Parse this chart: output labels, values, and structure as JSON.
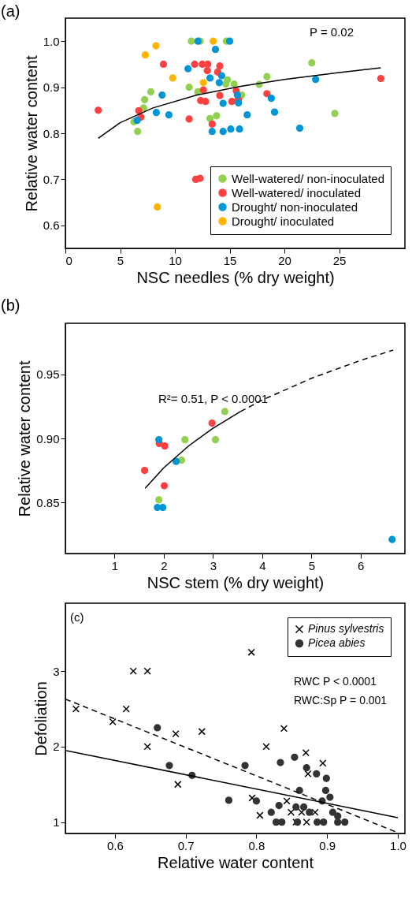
{
  "chart_data": [
    {
      "type": "scatter",
      "title": "(a)",
      "xlabel": "NSC needles (% dry weight)",
      "ylabel": "Relative water content",
      "xlim": [
        0,
        31
      ],
      "ylim": [
        0.55,
        1.05
      ],
      "xticks": [
        0,
        5,
        10,
        15,
        20,
        25
      ],
      "yticks": [
        0.6,
        0.7,
        0.8,
        0.9,
        {
          "value": 1,
          "label": "1.0"
        }
      ],
      "grid": false,
      "legend": "bottom right",
      "marker": "circle",
      "annotations": [
        "P = 0.02"
      ],
      "series": [
        {
          "name": "Well-watered/ non-inoculated",
          "color": "#92d050",
          "x": [
            11.5,
            12.3,
            14.7,
            14.8,
            14.65,
            15.4,
            11.3,
            12.1,
            7.8,
            7.24,
            7.14,
            6.26,
            6.6,
            13.2,
            13.8,
            16.1,
            22.5,
            18.4,
            17.7,
            24.6
          ],
          "values": [
            1.0,
            1.0,
            1.0,
            0.916,
            0.907,
            0.907,
            0.9,
            0.89,
            0.89,
            0.873,
            0.855,
            0.825,
            0.804,
            0.832,
            0.838,
            0.883,
            0.953,
            0.923,
            0.906,
            0.843
          ]
        },
        {
          "name": "Well-watered/ inoculated",
          "color": "#ff4040",
          "x": [
            3.0,
            6.7,
            6.9,
            8.95,
            11.8,
            12.5,
            13.0,
            14.1,
            12.96,
            13.9,
            12.6,
            15.6,
            14.1,
            12.35,
            12.8,
            15.2,
            15.8,
            11.3,
            13.4,
            11.9,
            12.3,
            18.4,
            28.8
          ],
          "values": [
            0.85,
            0.849,
            0.835,
            0.95,
            0.95,
            0.95,
            0.95,
            0.946,
            0.936,
            0.933,
            0.894,
            0.892,
            0.882,
            0.871,
            0.869,
            0.869,
            0.873,
            0.831,
            0.82,
            0.7,
            0.702,
            0.886,
            0.919
          ]
        },
        {
          "name": "Drought/ non-inoculated",
          "color": "#0096d6",
          "x": [
            12.1,
            15.0,
            13.7,
            11.2,
            14.27,
            13.2,
            14.05,
            15.7,
            8.83,
            14.4,
            15.8,
            8.3,
            9.45,
            6.55,
            13.4,
            14.4,
            15.1,
            15.9,
            22.85,
            18.8,
            19.1,
            16.6,
            21.4
          ],
          "values": [
            1.0,
            1.0,
            0.982,
            0.94,
            0.925,
            0.92,
            0.91,
            0.883,
            0.883,
            0.865,
            0.866,
            0.845,
            0.84,
            0.828,
            0.804,
            0.804,
            0.809,
            0.809,
            0.917,
            0.876,
            0.846,
            0.84,
            0.811
          ]
        },
        {
          "name": "Drought/ inoculated",
          "color": "#ffb400",
          "x": [
            13.5,
            8.27,
            7.3,
            9.8,
            12.6,
            8.4
          ],
          "values": [
            1.0,
            0.99,
            0.97,
            0.92,
            0.91,
            0.64
          ]
        },
        {
          "type": "line",
          "color": "#000000",
          "line_style": "solid",
          "marker": "none",
          "x": [
            3,
            5,
            8,
            12,
            16,
            20,
            25,
            28.8
          ],
          "values": [
            0.789,
            0.823,
            0.855,
            0.883,
            0.902,
            0.917,
            0.932,
            0.942
          ]
        }
      ]
    },
    {
      "type": "scatter",
      "title": "(b)",
      "xlabel": "NSC stem (% dry weight)",
      "ylabel": "Relative water content",
      "xlim": [
        0,
        6.9
      ],
      "ylim": [
        0.81,
        0.99
      ],
      "xticks": [
        1,
        2,
        3,
        4,
        5,
        6
      ],
      "yticks": [
        0.85,
        {
          "value": 0.9,
          "label": "0.90"
        },
        0.95
      ],
      "grid": false,
      "legend": false,
      "marker": "circle",
      "annotations": [
        "R²= 0.51, P < 0.0001"
      ],
      "series": [
        {
          "color": "#92d050",
          "x": [
            1.9,
            2.36,
            2.43,
            3.05,
            3.24
          ],
          "values": [
            0.852,
            0.883,
            0.899,
            0.899,
            0.921
          ]
        },
        {
          "color": "#ff4040",
          "x": [
            1.91,
            2.02,
            1.61,
            2.98,
            2.01
          ],
          "values": [
            0.896,
            0.894,
            0.875,
            0.912,
            0.863
          ]
        },
        {
          "color": "#0096d6",
          "x": [
            1.9,
            2.25,
            1.87,
            1.98,
            6.64
          ],
          "values": [
            0.899,
            0.882,
            0.846,
            0.846,
            0.821
          ]
        },
        {
          "type": "line",
          "color": "#000000",
          "line_style": "solid",
          "marker": "none",
          "x": [
            1.62,
            2,
            2.5,
            3,
            3.56
          ],
          "values": [
            0.861,
            0.877,
            0.894,
            0.908,
            0.921
          ]
        },
        {
          "type": "line",
          "color": "#000000",
          "line_style": "dashed",
          "marker": "none",
          "x": [
            3.56,
            4,
            5,
            6,
            6.66
          ],
          "values": [
            0.921,
            0.93,
            0.947,
            0.961,
            0.969
          ]
        }
      ]
    },
    {
      "type": "scatter",
      "title": "(c)",
      "xlabel": "Relative water content",
      "ylabel": "Defoliation",
      "xlim": [
        0.53,
        1.01
      ],
      "ylim": [
        0.85,
        3.9
      ],
      "xticks": [
        0.6,
        0.7,
        0.8,
        0.9,
        {
          "value": 1,
          "label": "1.0"
        }
      ],
      "yticks": [
        1,
        2,
        3
      ],
      "grid": false,
      "legend": "top right",
      "annotations": [
        "RWC     P < 0.0001",
        "RWC:Sp  P = 0.001"
      ],
      "series": [
        {
          "name": "Pinus sylvestris",
          "color": "#000000",
          "marker": "cross",
          "x": [
            0.545,
            0.597,
            0.616,
            0.626,
            0.646,
            0.646,
            0.686,
            0.723,
            0.689,
            0.793,
            0.839,
            0.814,
            0.87,
            0.894,
            0.873,
            0.794,
            0.843,
            0.805,
            0.849,
            0.864,
            0.883,
            0.856,
            0.871
          ],
          "values": [
            2.5,
            2.33,
            2.5,
            3.0,
            3.0,
            2.0,
            2.17,
            2.2,
            1.5,
            3.25,
            2.24,
            2.0,
            1.92,
            1.78,
            1.64,
            1.32,
            1.28,
            1.09,
            1.13,
            1.13,
            1.13,
            1.0,
            1.0
          ]
        },
        {
          "name": "Picea abies",
          "color": "#333333",
          "marker": "circle",
          "x": [
            0.66,
            0.677,
            0.709,
            0.761,
            0.784,
            0.8,
            0.834,
            0.854,
            0.871,
            0.885,
            0.899,
            0.861,
            0.898,
            0.904,
            0.893,
            0.821,
            0.832,
            0.856,
            0.867,
            0.875,
            0.908,
            0.915,
            0.828,
            0.836,
            0.858,
            0.886,
            0.895,
            0.915,
            0.925
          ],
          "values": [
            2.25,
            1.75,
            1.62,
            1.29,
            1.75,
            1.28,
            1.79,
            1.86,
            1.72,
            1.64,
            1.58,
            1.42,
            1.42,
            1.33,
            1.28,
            1.13,
            1.22,
            1.2,
            1.2,
            1.13,
            1.13,
            1.08,
            1.0,
            1.0,
            1.0,
            1.0,
            1.0,
            1.0,
            1.0
          ]
        },
        {
          "type": "line",
          "color": "#000000",
          "line_style": "dashed",
          "marker": "none",
          "x": [
            0.53,
            1.0
          ],
          "values": [
            2.63,
            0.86
          ]
        },
        {
          "type": "line",
          "color": "#000000",
          "line_style": "solid",
          "marker": "none",
          "x": [
            0.53,
            1.0
          ],
          "values": [
            1.95,
            1.06
          ]
        }
      ]
    }
  ]
}
